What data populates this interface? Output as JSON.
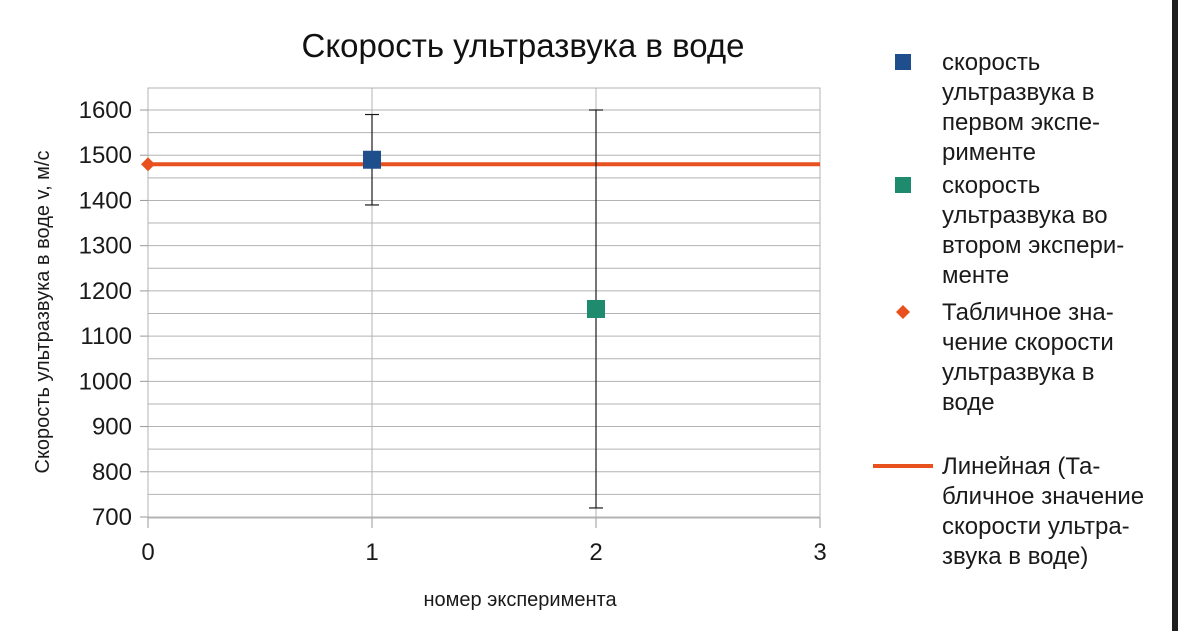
{
  "chart_data": {
    "type": "scatter",
    "title": "Скорость ультразвука в воде",
    "xlabel": "номер эксперимента",
    "ylabel": "Скорость ультразвука в воде v, м/с",
    "xlim": [
      0,
      3
    ],
    "ylim": [
      700,
      1600
    ],
    "x_ticks": [
      "0",
      "1",
      "2",
      "3"
    ],
    "y_ticks": [
      "700",
      "800",
      "900",
      "1000",
      "1100",
      "1200",
      "1300",
      "1400",
      "1500",
      "1600"
    ],
    "grid": true,
    "legend_position": "right",
    "series": [
      {
        "name": "скорость ультразвука в первом эксперименте",
        "legend_lines": [
          "скорость",
          "ультразвука в",
          "первом экспе-",
          "рименте"
        ],
        "color": "#1f4e8c",
        "marker": "square",
        "points": [
          {
            "x": 1,
            "y": 1490,
            "err_low": 1390,
            "err_high": 1590
          }
        ]
      },
      {
        "name": "скорость ультразвука во втором эксперименте",
        "legend_lines": [
          "скорость",
          "ультразвука во",
          "втором экспери-",
          "менте"
        ],
        "color": "#1e8a6e",
        "marker": "square",
        "points": [
          {
            "x": 2,
            "y": 1160,
            "err_low": 720,
            "err_high": 1600
          }
        ]
      },
      {
        "name": "Табличное значение скорости ультразвука в воде",
        "legend_lines": [
          "Табличное зна-",
          "чение скорости",
          "ультразвука в",
          "воде"
        ],
        "color": "#e8501e",
        "marker": "diamond",
        "points": [
          {
            "x": 0,
            "y": 1480
          }
        ]
      },
      {
        "name": "Линейная (Табличное значение скорости ультразвука в воде)",
        "legend_lines": [
          "Линейная (Та-",
          "бличное значение",
          "скорости ультра-",
          "звука в воде)"
        ],
        "color": "#e8501e",
        "marker": "line",
        "line_y": 1480
      }
    ]
  }
}
